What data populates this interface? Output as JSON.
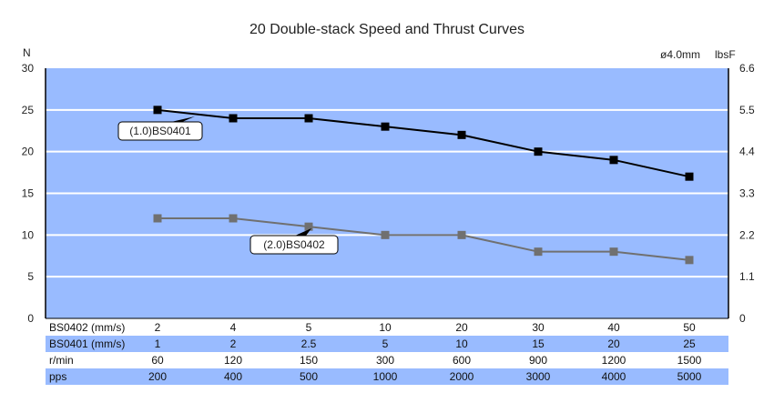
{
  "chart_data": {
    "type": "line",
    "title": "20 Double-stack Speed and Thrust Curves",
    "left_axis_unit": "N",
    "right_axis_unit": "lbsF",
    "diameter_label": "ø4.0mm",
    "ylim": [
      0,
      30
    ],
    "yticks": [
      "0",
      "5",
      "10",
      "15",
      "20",
      "25",
      "30"
    ],
    "y2ticks": [
      "0",
      "1.1",
      "2.2",
      "3.3",
      "4.4",
      "5.5",
      "6.6"
    ],
    "grid": true,
    "series": [
      {
        "name": "(1.0)BS0401",
        "color": "#000000",
        "values": [
          25,
          24,
          24,
          23,
          22,
          20,
          19,
          17
        ]
      },
      {
        "name": "(2.0)BS0402",
        "color": "#707070",
        "values": [
          12,
          12,
          11,
          10,
          10,
          8,
          8,
          7
        ]
      }
    ],
    "table": {
      "rows": [
        {
          "label": "BS0402 (mm/s)",
          "values": [
            "2",
            "4",
            "5",
            "10",
            "20",
            "30",
            "40",
            "50"
          ]
        },
        {
          "label": "BS0401 (mm/s)",
          "values": [
            "1",
            "2",
            "2.5",
            "5",
            "10",
            "15",
            "20",
            "25"
          ]
        },
        {
          "label": "r/min",
          "values": [
            "60",
            "120",
            "150",
            "300",
            "600",
            "900",
            "1200",
            "1500"
          ]
        },
        {
          "label": "pps",
          "values": [
            "200",
            "400",
            "500",
            "1000",
            "2000",
            "3000",
            "4000",
            "5000"
          ]
        }
      ]
    },
    "plot_background": "#99bbff",
    "grid_color": "#ffffff"
  }
}
